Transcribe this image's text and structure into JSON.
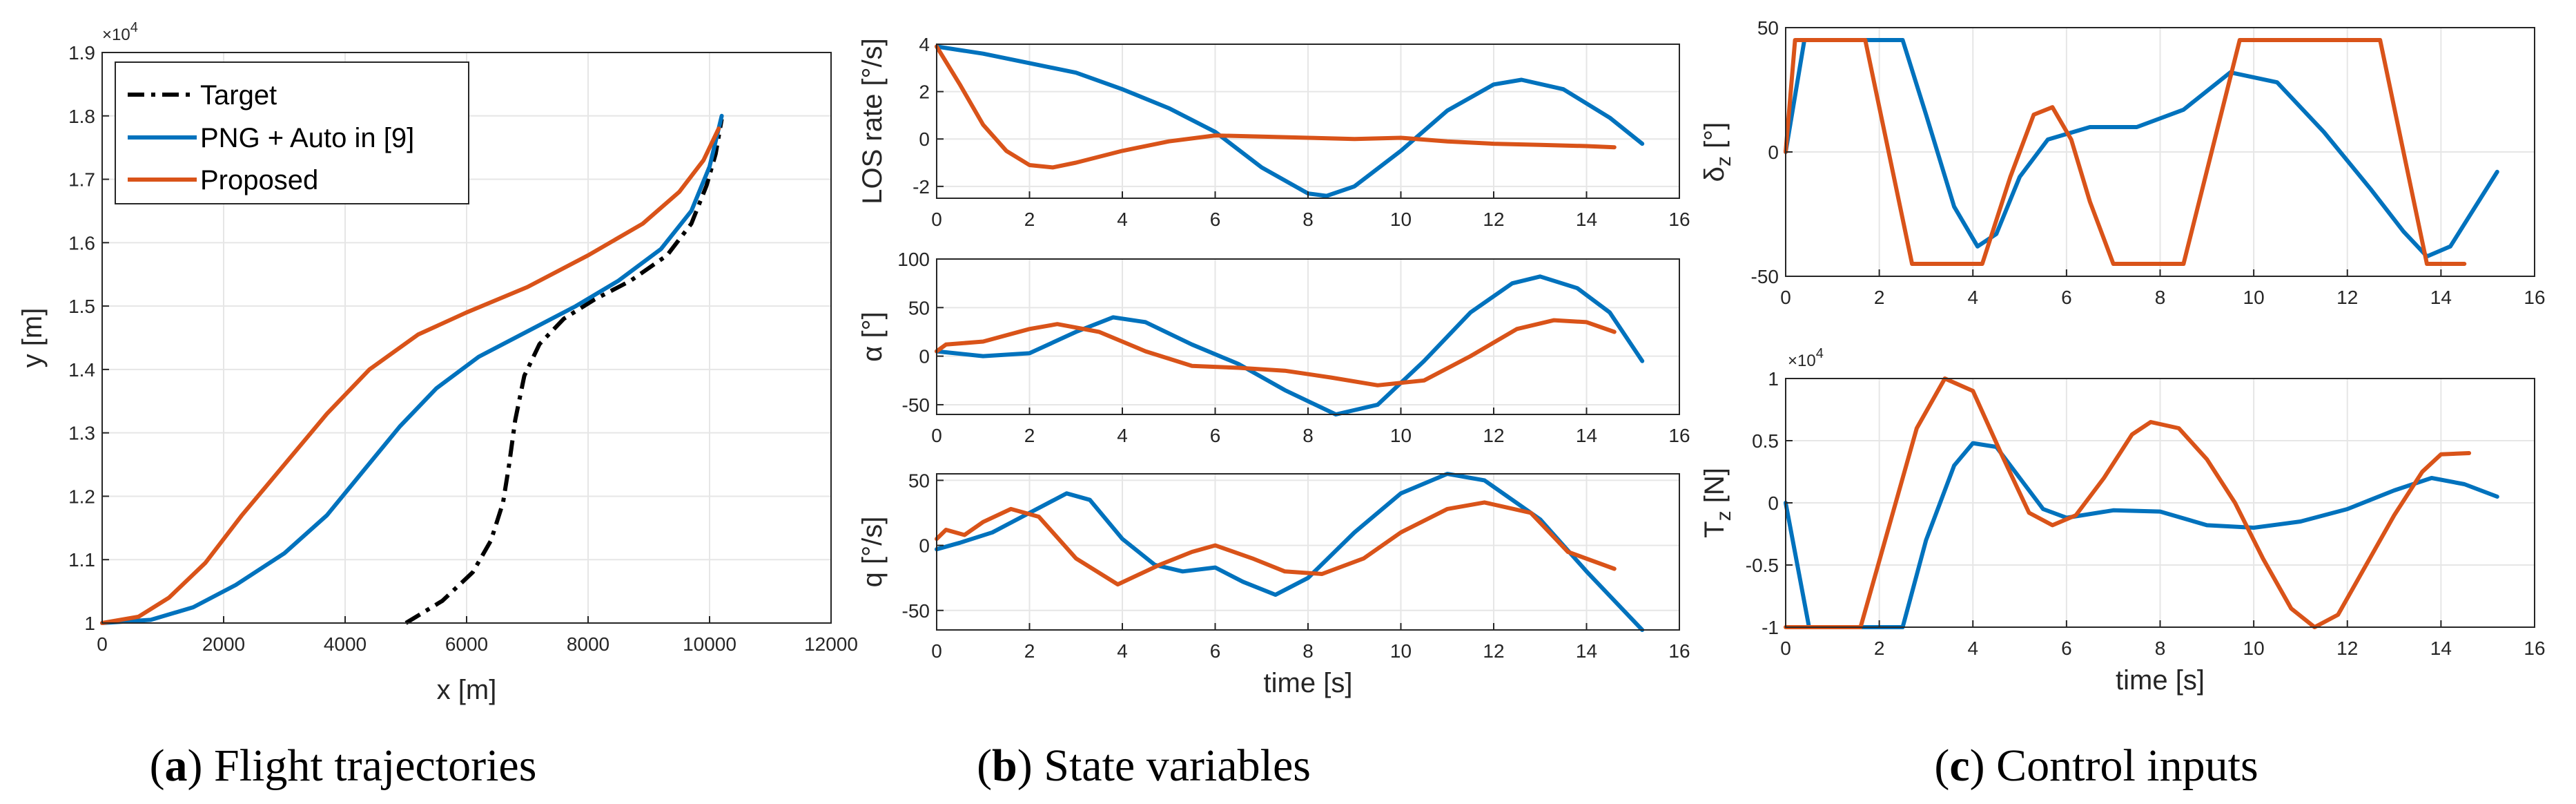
{
  "colors": {
    "target": "#000000",
    "png": "#0072BD",
    "proposed": "#D95319",
    "grid": "#E6E6E6",
    "axis": "#262626"
  },
  "captions": [
    {
      "letter": "a",
      "text": "Flight trajectories",
      "open": "(",
      "close": ")"
    },
    {
      "letter": "b",
      "text": "State variables",
      "open": "(",
      "close": ")"
    },
    {
      "letter": "c",
      "text": "Control inputs",
      "open": "(",
      "close": ")"
    }
  ],
  "chart_data": [
    {
      "id": "flight-trajectories",
      "type": "line",
      "xlabel": "x [m]",
      "ylabel": "y [m]",
      "xlim": [
        0,
        12000
      ],
      "ylim": [
        10000,
        19000
      ],
      "xticks": [
        0,
        2000,
        4000,
        6000,
        8000,
        10000,
        12000
      ],
      "yticks": [
        10000,
        11000,
        12000,
        13000,
        14000,
        15000,
        16000,
        17000,
        18000,
        19000
      ],
      "ytick_labels": [
        "1",
        "1.1",
        "1.2",
        "1.3",
        "1.4",
        "1.5",
        "1.6",
        "1.7",
        "1.8",
        "1.9"
      ],
      "y_exponent": "×10",
      "y_exponent_power": "4",
      "grid": true,
      "legend": "top-left",
      "series": [
        {
          "name": "Target",
          "style": "dashdot",
          "color": "#000000",
          "x": [
            5000,
            5600,
            6100,
            6400,
            6600,
            6700,
            6800,
            6950,
            7200,
            7600,
            8100,
            8700,
            9300,
            9700,
            9950,
            10100,
            10200
          ],
          "y": [
            10000,
            10350,
            10800,
            11300,
            11900,
            12500,
            13200,
            13900,
            14400,
            14800,
            15100,
            15400,
            15800,
            16300,
            16900,
            17400,
            17950
          ]
        },
        {
          "name": "PNG + Auto in [9]",
          "style": "solid",
          "color": "#0072BD",
          "x": [
            0,
            800,
            1500,
            2200,
            3000,
            3700,
            4300,
            4900,
            5500,
            6200,
            7000,
            7800,
            8500,
            9200,
            9700,
            10000,
            10200
          ],
          "y": [
            10000,
            10050,
            10250,
            10600,
            11100,
            11700,
            12400,
            13100,
            13700,
            14200,
            14600,
            15000,
            15400,
            15900,
            16500,
            17200,
            18000
          ]
        },
        {
          "name": "Proposed",
          "style": "solid",
          "color": "#D95319",
          "x": [
            0,
            600,
            1100,
            1700,
            2300,
            3000,
            3700,
            4400,
            5200,
            6000,
            7000,
            8000,
            8900,
            9500,
            9900,
            10150
          ],
          "y": [
            10000,
            10100,
            10400,
            10950,
            11700,
            12500,
            13300,
            14000,
            14550,
            14900,
            15300,
            15800,
            16300,
            16800,
            17300,
            17800
          ]
        }
      ]
    },
    {
      "id": "los-rate",
      "type": "line",
      "xlabel": "",
      "ylabel": "LOS rate [°/s]",
      "xlim": [
        0,
        16
      ],
      "ylim": [
        -2.5,
        4
      ],
      "xticks": [
        0,
        2,
        4,
        6,
        8,
        10,
        12,
        14,
        16
      ],
      "yticks": [
        -2,
        0,
        2,
        4
      ],
      "grid": true,
      "series": [
        {
          "name": "PNG + Auto in [9]",
          "color": "#0072BD",
          "x": [
            0,
            1,
            2,
            3,
            4,
            5,
            6,
            7,
            8,
            8.4,
            9,
            10,
            11,
            12,
            12.6,
            13.5,
            14.5,
            15.2
          ],
          "y": [
            3.9,
            3.6,
            3.2,
            2.8,
            2.1,
            1.3,
            0.3,
            -1.2,
            -2.3,
            -2.4,
            -2.0,
            -0.5,
            1.2,
            2.3,
            2.5,
            2.1,
            0.9,
            -0.2
          ]
        },
        {
          "name": "Proposed",
          "color": "#D95319",
          "x": [
            0,
            0.5,
            1,
            1.5,
            2,
            2.5,
            3,
            4,
            5,
            6,
            7,
            8,
            9,
            10,
            11,
            12,
            13,
            14,
            14.6
          ],
          "y": [
            3.9,
            2.3,
            0.6,
            -0.5,
            -1.1,
            -1.2,
            -1.0,
            -0.5,
            -0.1,
            0.15,
            0.1,
            0.05,
            0.0,
            0.05,
            -0.1,
            -0.2,
            -0.25,
            -0.3,
            -0.35
          ]
        }
      ]
    },
    {
      "id": "alpha",
      "type": "line",
      "xlabel": "",
      "ylabel": "α [°]",
      "xlim": [
        0,
        16
      ],
      "ylim": [
        -60,
        100
      ],
      "xticks": [
        0,
        2,
        4,
        6,
        8,
        10,
        12,
        14,
        16
      ],
      "yticks": [
        -50,
        0,
        50,
        100
      ],
      "grid": true,
      "series": [
        {
          "name": "PNG + Auto in [9]",
          "color": "#0072BD",
          "x": [
            0,
            1,
            2,
            3,
            3.8,
            4.5,
            5.5,
            6.5,
            7.5,
            8.6,
            9.5,
            10.5,
            11.5,
            12.4,
            13,
            13.8,
            14.5,
            15.2
          ],
          "y": [
            5,
            0,
            3,
            25,
            40,
            35,
            12,
            -8,
            -35,
            -60,
            -50,
            -5,
            45,
            75,
            82,
            70,
            45,
            -5
          ]
        },
        {
          "name": "Proposed",
          "color": "#D95319",
          "x": [
            0,
            0.2,
            1,
            2,
            2.6,
            3.5,
            4.5,
            5.5,
            6.5,
            7.5,
            8.5,
            9.5,
            10.5,
            11.5,
            12.5,
            13.3,
            14,
            14.6
          ],
          "y": [
            5,
            12,
            15,
            28,
            33,
            25,
            5,
            -10,
            -12,
            -15,
            -22,
            -30,
            -25,
            0,
            28,
            37,
            35,
            25
          ]
        }
      ]
    },
    {
      "id": "pitch-rate",
      "type": "line",
      "xlabel": "time [s]",
      "ylabel": "q [°/s]",
      "xlim": [
        0,
        16
      ],
      "ylim": [
        -65,
        55
      ],
      "xticks": [
        0,
        2,
        4,
        6,
        8,
        10,
        12,
        14,
        16
      ],
      "yticks": [
        -50,
        0,
        50
      ],
      "grid": true,
      "series": [
        {
          "name": "PNG + Auto in [9]",
          "color": "#0072BD",
          "x": [
            0,
            0.5,
            1.2,
            2,
            2.8,
            3.3,
            4,
            4.7,
            5.3,
            6,
            6.6,
            7.3,
            8,
            9,
            10,
            11,
            11.8,
            13,
            14,
            15.2
          ],
          "y": [
            -3,
            2,
            10,
            25,
            40,
            35,
            5,
            -15,
            -20,
            -17,
            -28,
            -38,
            -25,
            10,
            40,
            55,
            50,
            20,
            -20,
            -65
          ]
        },
        {
          "name": "Proposed",
          "color": "#D95319",
          "x": [
            0,
            0.2,
            0.6,
            1,
            1.6,
            2.2,
            3,
            3.9,
            4.8,
            5.5,
            6,
            6.8,
            7.5,
            8.3,
            9.2,
            10,
            11,
            11.8,
            12.8,
            13.6,
            14.6
          ],
          "y": [
            5,
            12,
            8,
            18,
            28,
            22,
            -10,
            -30,
            -15,
            -5,
            0,
            -10,
            -20,
            -22,
            -10,
            10,
            28,
            33,
            25,
            -5,
            -18
          ]
        }
      ]
    },
    {
      "id": "delta-z",
      "type": "line",
      "xlabel": "",
      "ylabel": "δz [°]",
      "xlim": [
        0,
        16
      ],
      "ylim": [
        -50,
        50
      ],
      "xticks": [
        0,
        2,
        4,
        6,
        8,
        10,
        12,
        14,
        16
      ],
      "yticks": [
        -50,
        0,
        50
      ],
      "grid": true,
      "series": [
        {
          "name": "PNG + Auto in [9]",
          "color": "#0072BD",
          "x": [
            0,
            0.4,
            2.5,
            3,
            3.6,
            4.1,
            4.5,
            5,
            5.6,
            6.5,
            7.5,
            8.5,
            9.5,
            10.5,
            11.5,
            12.5,
            13.2,
            13.7,
            14.2,
            15.2
          ],
          "y": [
            0,
            45,
            45,
            15,
            -22,
            -38,
            -33,
            -10,
            5,
            10,
            10,
            17,
            32,
            28,
            8,
            -15,
            -32,
            -42,
            -38,
            -8
          ]
        },
        {
          "name": "Proposed",
          "color": "#D95319",
          "x": [
            0,
            0.2,
            1.7,
            2.7,
            3.7,
            4.2,
            4.8,
            5.3,
            5.7,
            6.1,
            6.5,
            7,
            8.5,
            9.7,
            12.7,
            13.7,
            14.5
          ],
          "y": [
            0,
            45,
            45,
            -45,
            -45,
            -45,
            -10,
            15,
            18,
            5,
            -20,
            -45,
            -45,
            45,
            45,
            -45,
            -45
          ]
        }
      ]
    },
    {
      "id": "tz",
      "type": "line",
      "xlabel": "time [s]",
      "ylabel": "Tz [N]",
      "xlim": [
        0,
        16
      ],
      "ylim": [
        -10000,
        10000
      ],
      "xticks": [
        0,
        2,
        4,
        6,
        8,
        10,
        12,
        14,
        16
      ],
      "yticks": [
        -10000,
        -5000,
        0,
        5000,
        10000
      ],
      "ytick_labels": [
        "-1",
        "-0.5",
        "0",
        "0.5",
        "1"
      ],
      "y_exponent": "×10",
      "y_exponent_power": "4",
      "grid": true,
      "series": [
        {
          "name": "PNG + Auto in [9]",
          "color": "#0072BD",
          "x": [
            0,
            0.5,
            2.5,
            3,
            3.6,
            4,
            4.5,
            5,
            5.5,
            6,
            7,
            8,
            9,
            10,
            11,
            12,
            13,
            13.8,
            14.5,
            15.2
          ],
          "y": [
            0,
            -10000,
            -10000,
            -3000,
            3000,
            4800,
            4500,
            2000,
            -500,
            -1200,
            -600,
            -700,
            -1800,
            -2000,
            -1500,
            -500,
            1000,
            2000,
            1500,
            500
          ]
        },
        {
          "name": "Proposed",
          "color": "#D95319",
          "x": [
            0,
            0.3,
            1.6,
            2.2,
            2.8,
            3.4,
            4,
            4.6,
            5.2,
            5.7,
            6.2,
            6.8,
            7.4,
            7.8,
            8.4,
            9,
            9.6,
            10.2,
            10.8,
            11.3,
            11.8,
            12.4,
            13,
            13.6,
            14,
            14.6
          ],
          "y": [
            -10000,
            -10000,
            -10000,
            -2000,
            6000,
            10000,
            9000,
            4000,
            -800,
            -1800,
            -1000,
            2000,
            5500,
            6500,
            6000,
            3500,
            0,
            -4500,
            -8500,
            -10000,
            -9000,
            -5000,
            -1000,
            2500,
            3900,
            4000
          ]
        }
      ]
    }
  ]
}
